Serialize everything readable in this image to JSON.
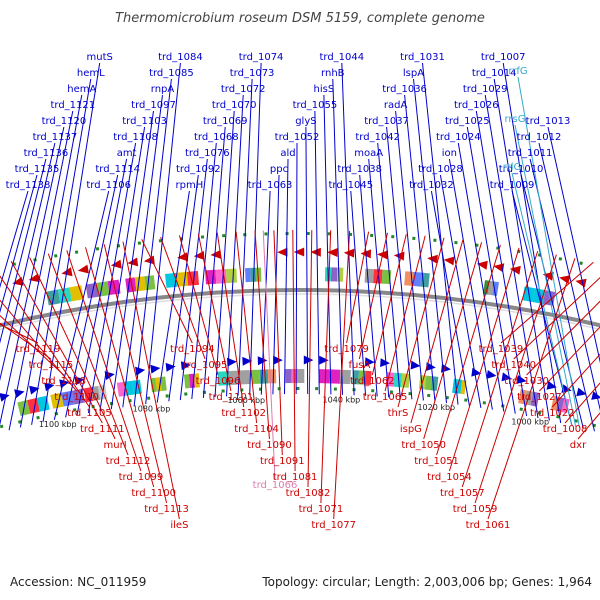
{
  "title": "Thermomicrobium roseum DSM 5159, complete genome",
  "footer": {
    "accession": "Accession: NC_011959",
    "summary": "Topology: circular; Length: 2,003,006 bp; Genes: 1,964"
  },
  "colors": {
    "forward": "#0000cc",
    "reverse": "#cc0000",
    "rna": "#33aacc",
    "pseudo": "#e07ab0",
    "backbone": "#888888",
    "tick": "#22882a"
  },
  "kbp_labels": [
    "1120 kbp",
    "1100 kbp",
    "1080 kbp",
    "1060 kbp",
    "1040 kbp",
    "1020 kbp",
    "1000 kbp",
    "980 kbp"
  ],
  "forward_genes": [
    "trd_1138",
    "trd_1135",
    "trd_1136",
    "trd_1137",
    "trd_1120",
    "trd_1121",
    "hemA",
    "hemL",
    "mutS",
    "trd_1106",
    "trd_1114",
    "amt",
    "trd_1108",
    "trd_1103",
    "trd_1097",
    "rnpA",
    "trd_1085",
    "trd_1084",
    "rpmH",
    "trd_1092",
    "trd_1076",
    "trd_1068",
    "trd_1069",
    "trd_1070",
    "trd_1072",
    "trd_1073",
    "trd_1074",
    "trd_1063",
    "ppc",
    "ald",
    "trd_1052",
    "glyS",
    "trd_1055",
    "hisS",
    "rnhB",
    "trd_1044",
    "trd_1045",
    "trd_1038",
    "moaA",
    "trd_1042",
    "trd_1037",
    "radA",
    "trd_1036",
    "lspA",
    "trd_1031",
    "trd_1032",
    "trd_1028",
    "ion",
    "trd_1024",
    "trd_1025",
    "trd_1026",
    "trd_1029",
    "trd_1014",
    "trd_1007",
    "trd_1009",
    "trd_1010",
    "trd_1011",
    "trd_1012",
    "trd_1013"
  ],
  "rna_genes": [
    "rrlG",
    "rrsG",
    "rrfG"
  ],
  "reverse_genes": [
    "trd_1119",
    "trd_1115",
    "trd_1118",
    "trd_1110",
    "trd_1105",
    "trd_1111",
    "murI",
    "trd_1112",
    "trd_1099",
    "trd_1100",
    "trd_1113",
    "ileS",
    "trd_1094",
    "trd_1095",
    "trd_1096",
    "trd_1101",
    "trd_1102",
    "trd_1104",
    "trd_1090",
    "trd_1091",
    "trd_1081",
    "trd_1082",
    "trd_1071",
    "trd_1077",
    "trd_1079",
    "fusA",
    "trd_1062",
    "trd_1065",
    "thrS",
    "ispG",
    "trd_1050",
    "trd_1051",
    "trd_1054",
    "trd_1057",
    "trd_1059",
    "trd_1061",
    "trd_1039",
    "trd_1040",
    "trd_1030",
    "trd_1027",
    "trd_1022",
    "trd_1008",
    "dxr"
  ],
  "pseudo_genes": [
    "trd_1066"
  ]
}
